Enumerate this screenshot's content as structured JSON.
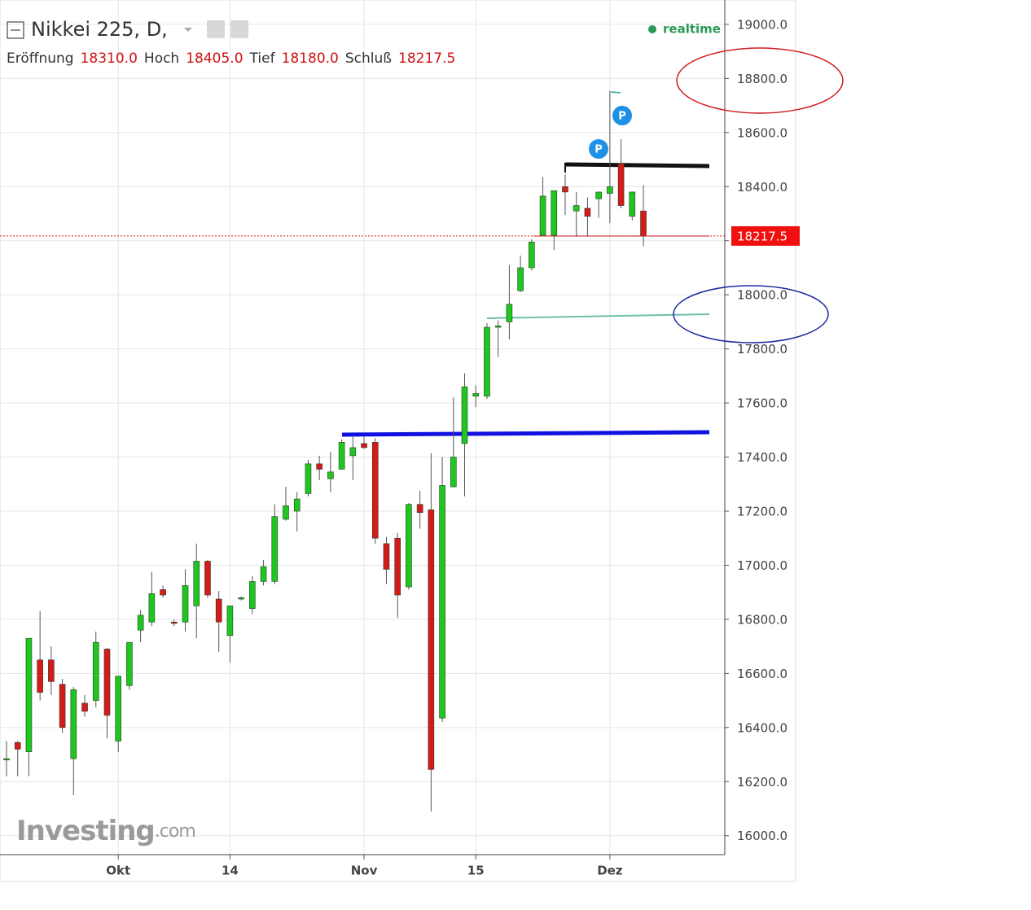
{
  "chart_data": {
    "type": "candlestick",
    "title": "Nikkei 225, D,",
    "ohlc_header": [
      {
        "name": "Eröffnung",
        "value": "18310.0"
      },
      {
        "name": "Hoch",
        "value": "18405.0"
      },
      {
        "name": "Tief",
        "value": "18180.0"
      },
      {
        "name": "Schluß",
        "value": "18217.5"
      }
    ],
    "status": "realtime",
    "watermark": "Investing",
    "watermark_suffix": ".com",
    "categories": [
      null,
      null,
      null,
      null,
      null,
      null,
      null,
      null,
      null,
      null,
      "Okt",
      null,
      null,
      null,
      null,
      null,
      null,
      null,
      null,
      null,
      "14",
      null,
      null,
      null,
      null,
      null,
      null,
      null,
      null,
      null,
      null,
      null,
      "Nov",
      null,
      null,
      null,
      null,
      null,
      null,
      null,
      null,
      null,
      "15",
      null,
      null,
      null,
      null,
      null,
      null,
      null,
      null,
      null,
      null,
      null,
      "Dez",
      null,
      null,
      null
    ],
    "open": [
      16280,
      16345,
      16310,
      16650,
      16650,
      16560,
      16285,
      16490,
      16500,
      16690,
      16350,
      16555,
      16760,
      16790,
      16910,
      16790,
      16790,
      16850,
      17015,
      16875,
      16740,
      16875,
      16840,
      16940,
      16940,
      17170,
      17200,
      17265,
      17375,
      17320,
      17355,
      17405,
      17450,
      17455,
      17080,
      17100,
      16920,
      17225,
      17205,
      16435,
      17290,
      17450,
      17625,
      17625,
      17880,
      17900,
      18015,
      18100,
      18220,
      18220,
      18400,
      18310,
      18320,
      18355,
      18375,
      18485,
      18290,
      18310
    ],
    "high": [
      16350,
      16350,
      16730,
      16830,
      16700,
      16580,
      16550,
      16520,
      16755,
      16695,
      16590,
      16715,
      16835,
      16975,
      16925,
      16800,
      16985,
      17080,
      17020,
      16905,
      16850,
      16885,
      16960,
      17020,
      17225,
      17290,
      17270,
      17390,
      17405,
      17420,
      17465,
      17480,
      17475,
      17470,
      17105,
      17120,
      17230,
      17275,
      17415,
      17400,
      17620,
      17710,
      17665,
      17895,
      17905,
      18110,
      18145,
      18205,
      18435,
      18385,
      18445,
      18380,
      18360,
      18380,
      18755,
      18575,
      18380,
      18405
    ],
    "low": [
      16220,
      16220,
      16220,
      16500,
      16520,
      16380,
      16150,
      16440,
      16475,
      16360,
      16310,
      16540,
      16715,
      16775,
      16880,
      16775,
      16755,
      16730,
      16880,
      16680,
      16640,
      16870,
      16820,
      16925,
      16930,
      17165,
      17125,
      17255,
      17315,
      17270,
      17355,
      17315,
      17430,
      17080,
      16930,
      16805,
      16910,
      17135,
      16090,
      16420,
      17290,
      17255,
      17585,
      17615,
      17770,
      17835,
      18010,
      18090,
      18220,
      18165,
      18295,
      18215,
      18215,
      18285,
      18265,
      18320,
      18275,
      18180
    ],
    "close": [
      16285,
      16320,
      16730,
      16530,
      16570,
      16400,
      16540,
      16460,
      16715,
      16445,
      16590,
      16715,
      16815,
      16895,
      16890,
      16785,
      16925,
      17015,
      16890,
      16790,
      16850,
      16880,
      16940,
      16995,
      17180,
      17220,
      17245,
      17375,
      17355,
      17345,
      17455,
      17435,
      17435,
      17100,
      16985,
      16890,
      17225,
      17195,
      16245,
      17295,
      17400,
      17660,
      17635,
      17880,
      17885,
      17965,
      18100,
      18195,
      18365,
      18385,
      18380,
      18330,
      18290,
      18380,
      18400,
      18330,
      18380,
      18217.5
    ],
    "up_color": "#1ec71e",
    "down_color": "#d51a1a",
    "last_price": 18217.5,
    "ylim": [
      15930,
      19090
    ],
    "yticks": [
      {
        "value": 16000,
        "label": "16000.0"
      },
      {
        "value": 16200,
        "label": "16200.0"
      },
      {
        "value": 16400,
        "label": "16400.0"
      },
      {
        "value": 16600,
        "label": "16600.0"
      },
      {
        "value": 16800,
        "label": "16800.0"
      },
      {
        "value": 17000,
        "label": "17000.0"
      },
      {
        "value": 17200,
        "label": "17200.0"
      },
      {
        "value": 17400,
        "label": "17400.0"
      },
      {
        "value": 17600,
        "label": "17600.0"
      },
      {
        "value": 17800,
        "label": "17800.0"
      },
      {
        "value": 18000,
        "label": "18000.0"
      },
      {
        "value": 18200,
        "label": "18200.0"
      },
      {
        "value": 18400,
        "label": "18400.0"
      },
      {
        "value": 18600,
        "label": "18600.0"
      },
      {
        "value": 18800,
        "label": "18800.0"
      },
      {
        "value": 19000,
        "label": "19000.0"
      }
    ],
    "grid": true
  }
}
